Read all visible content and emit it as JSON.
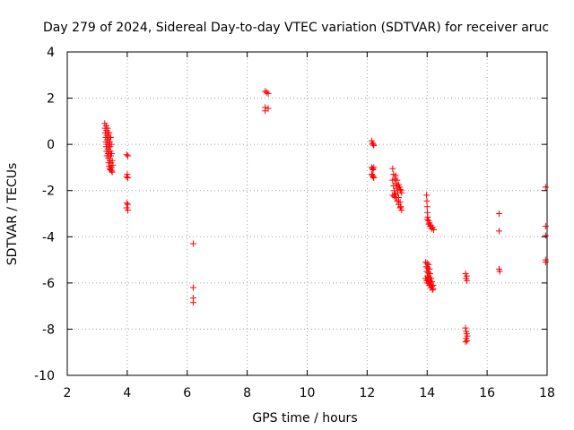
{
  "chart_data": {
    "type": "scatter",
    "title": "Day 279 of 2024, Sidereal Day-to-day VTEC variation (SDTVAR) for receiver aruc",
    "xlabel": "GPS time / hours",
    "ylabel": "SDTVAR / TECUs",
    "xlim": [
      2,
      18
    ],
    "ylim": [
      -10,
      4
    ],
    "xticks": [
      2,
      4,
      6,
      8,
      10,
      12,
      14,
      16,
      18
    ],
    "yticks": [
      -10,
      -8,
      -6,
      -4,
      -2,
      0,
      2,
      4
    ],
    "xtick_labels": [
      "2",
      "4",
      "6",
      "8",
      "10",
      "12",
      "14",
      "16",
      "18"
    ],
    "ytick_labels": [
      "-10",
      "-8",
      "-6",
      "-4",
      "-2",
      "0",
      "2",
      "4"
    ],
    "grid": true,
    "marker": "+",
    "colors": {
      "points": "#ff0000",
      "grid": "#a0a0a0",
      "axes": "#000000"
    },
    "series": [
      {
        "name": "SDTVAR",
        "points": [
          [
            3.25,
            0.9
          ],
          [
            3.26,
            0.7
          ],
          [
            3.27,
            0.5
          ],
          [
            3.28,
            0.3
          ],
          [
            3.29,
            0.1
          ],
          [
            3.3,
            -0.1
          ],
          [
            3.31,
            -0.3
          ],
          [
            3.32,
            -0.5
          ],
          [
            3.3,
            0.8
          ],
          [
            3.31,
            0.6
          ],
          [
            3.32,
            0.4
          ],
          [
            3.33,
            0.2
          ],
          [
            3.34,
            0.0
          ],
          [
            3.35,
            -0.2
          ],
          [
            3.36,
            -0.4
          ],
          [
            3.37,
            -0.6
          ],
          [
            3.35,
            0.7
          ],
          [
            3.36,
            0.5
          ],
          [
            3.37,
            0.3
          ],
          [
            3.38,
            0.1
          ],
          [
            3.39,
            -0.1
          ],
          [
            3.4,
            -0.3
          ],
          [
            3.41,
            -0.5
          ],
          [
            3.42,
            -0.7
          ],
          [
            3.4,
            0.5
          ],
          [
            3.41,
            0.3
          ],
          [
            3.42,
            0.1
          ],
          [
            3.43,
            -0.1
          ],
          [
            3.44,
            -0.3
          ],
          [
            3.45,
            -0.5
          ],
          [
            3.46,
            -0.8
          ],
          [
            3.47,
            -1.0
          ],
          [
            3.38,
            -0.8
          ],
          [
            3.4,
            -0.95
          ],
          [
            3.42,
            -1.05
          ],
          [
            3.44,
            -1.1
          ],
          [
            3.48,
            -1.15
          ],
          [
            3.5,
            -1.2
          ],
          [
            3.45,
            0.3
          ],
          [
            3.47,
            0.0
          ],
          [
            3.48,
            -0.4
          ],
          [
            3.5,
            -0.7
          ],
          [
            3.52,
            -0.9
          ],
          [
            3.98,
            -0.45
          ],
          [
            4.02,
            -0.5
          ],
          [
            4.0,
            -1.3
          ],
          [
            3.98,
            -1.4
          ],
          [
            4.02,
            -1.45
          ],
          [
            3.98,
            -2.55
          ],
          [
            4.02,
            -2.6
          ],
          [
            3.98,
            -2.75
          ],
          [
            4.02,
            -2.85
          ],
          [
            6.2,
            -4.3
          ],
          [
            6.2,
            -6.2
          ],
          [
            6.2,
            -6.65
          ],
          [
            6.2,
            -6.85
          ],
          [
            8.6,
            2.3
          ],
          [
            8.7,
            2.2
          ],
          [
            8.65,
            2.25
          ],
          [
            8.6,
            1.6
          ],
          [
            8.7,
            1.55
          ],
          [
            8.6,
            1.45
          ],
          [
            12.15,
            0.15
          ],
          [
            12.18,
            0.05
          ],
          [
            12.2,
            0.0
          ],
          [
            12.22,
            -0.05
          ],
          [
            12.15,
            -1.0
          ],
          [
            12.18,
            -1.05
          ],
          [
            12.2,
            -1.1
          ],
          [
            12.22,
            -1.0
          ],
          [
            12.15,
            -1.3
          ],
          [
            12.18,
            -1.35
          ],
          [
            12.2,
            -1.4
          ],
          [
            12.22,
            -1.45
          ],
          [
            12.85,
            -1.05
          ],
          [
            12.88,
            -1.3
          ],
          [
            12.92,
            -1.5
          ],
          [
            12.95,
            -1.7
          ],
          [
            12.98,
            -1.9
          ],
          [
            13.02,
            -2.1
          ],
          [
            13.05,
            -2.3
          ],
          [
            13.1,
            -2.5
          ],
          [
            13.12,
            -2.7
          ],
          [
            12.85,
            -1.55
          ],
          [
            12.88,
            -1.8
          ],
          [
            12.9,
            -2.0
          ],
          [
            12.93,
            -2.15
          ],
          [
            12.96,
            -2.3
          ],
          [
            13.0,
            -2.45
          ],
          [
            13.05,
            -2.6
          ],
          [
            13.1,
            -2.75
          ],
          [
            13.15,
            -2.85
          ],
          [
            12.95,
            -1.35
          ],
          [
            13.0,
            -1.55
          ],
          [
            13.05,
            -1.75
          ],
          [
            13.1,
            -1.95
          ],
          [
            13.15,
            -2.1
          ],
          [
            12.85,
            -2.2
          ],
          [
            12.9,
            -2.25
          ],
          [
            12.95,
            -2.3
          ],
          [
            13.0,
            -1.8
          ],
          [
            13.08,
            -1.85
          ],
          [
            13.12,
            -2.0
          ],
          [
            13.98,
            -2.2
          ],
          [
            13.99,
            -2.45
          ],
          [
            14.0,
            -2.7
          ],
          [
            14.01,
            -2.95
          ],
          [
            14.02,
            -3.15
          ],
          [
            14.05,
            -3.3
          ],
          [
            14.08,
            -3.4
          ],
          [
            14.12,
            -3.5
          ],
          [
            14.18,
            -3.6
          ],
          [
            14.22,
            -3.7
          ],
          [
            14.0,
            -3.25
          ],
          [
            14.05,
            -3.45
          ],
          [
            14.1,
            -3.55
          ],
          [
            14.15,
            -3.65
          ],
          [
            13.95,
            -5.1
          ],
          [
            13.97,
            -5.3
          ],
          [
            13.99,
            -5.5
          ],
          [
            14.01,
            -5.7
          ],
          [
            14.03,
            -5.85
          ],
          [
            14.05,
            -6.0
          ],
          [
            14.08,
            -6.1
          ],
          [
            14.12,
            -6.2
          ],
          [
            14.18,
            -6.3
          ],
          [
            14.0,
            -5.15
          ],
          [
            14.02,
            -5.35
          ],
          [
            14.04,
            -5.55
          ],
          [
            14.06,
            -5.75
          ],
          [
            14.09,
            -5.9
          ],
          [
            14.12,
            -6.05
          ],
          [
            14.16,
            -6.15
          ],
          [
            14.2,
            -6.25
          ],
          [
            14.05,
            -5.2
          ],
          [
            14.08,
            -5.4
          ],
          [
            14.1,
            -5.6
          ],
          [
            14.13,
            -5.8
          ],
          [
            14.16,
            -5.95
          ],
          [
            14.2,
            -6.1
          ],
          [
            13.95,
            -5.8
          ],
          [
            13.98,
            -5.9
          ],
          [
            14.0,
            -6.0
          ],
          [
            15.28,
            -5.6
          ],
          [
            15.32,
            -5.7
          ],
          [
            15.3,
            -5.8
          ],
          [
            15.33,
            -5.9
          ],
          [
            15.28,
            -7.95
          ],
          [
            15.3,
            -8.1
          ],
          [
            15.32,
            -8.2
          ],
          [
            15.34,
            -8.3
          ],
          [
            15.3,
            -8.4
          ],
          [
            15.33,
            -8.5
          ],
          [
            15.28,
            -8.55
          ],
          [
            16.4,
            -3.0
          ],
          [
            16.4,
            -3.75
          ],
          [
            16.4,
            -5.4
          ],
          [
            16.42,
            -5.5
          ],
          [
            17.95,
            -1.85
          ],
          [
            17.95,
            -3.55
          ],
          [
            17.95,
            -3.95
          ],
          [
            17.95,
            -5.0
          ],
          [
            17.95,
            -5.1
          ]
        ]
      }
    ]
  }
}
